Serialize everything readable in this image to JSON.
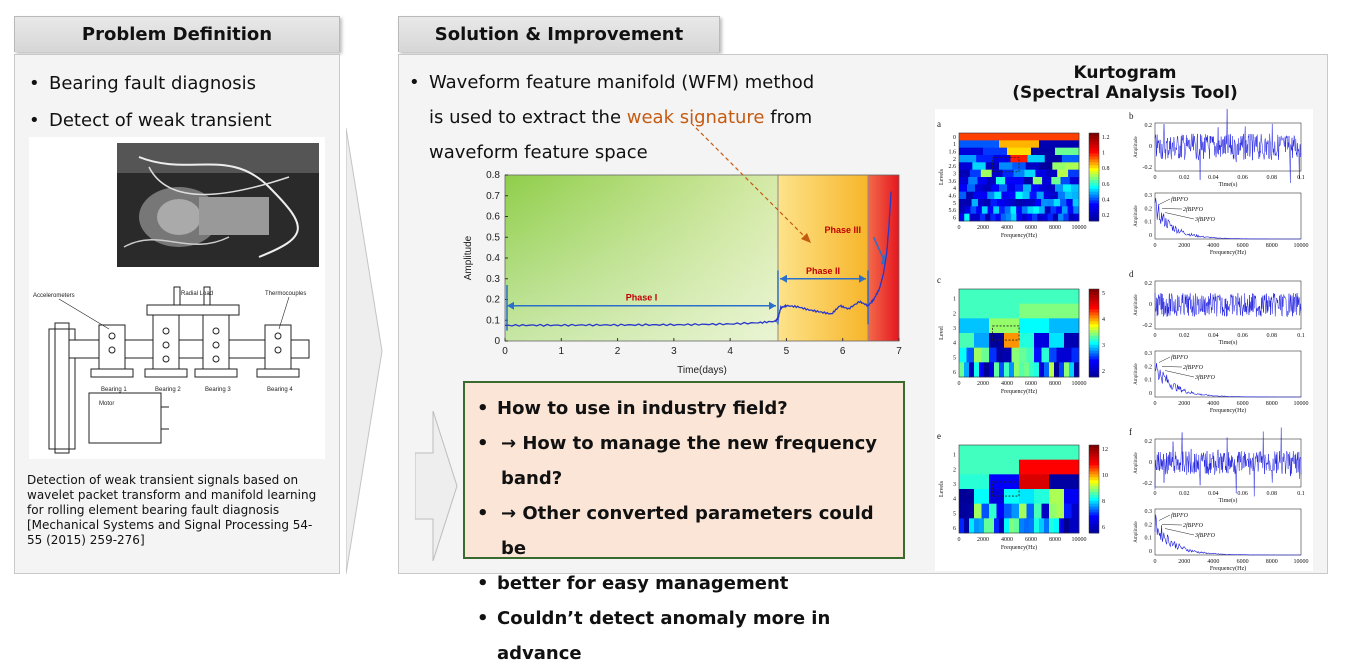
{
  "left": {
    "tab_title": "Problem Definition",
    "bullets": [
      "Bearing fault diagnosis",
      "Detect of weak transient signals"
    ],
    "diagram_labels": {
      "accelerometers": "Accelerometers",
      "radial_load": "Radial Load",
      "thermocouples": "Thermocouples",
      "bearing1": "Bearing 1",
      "bearing2": "Bearing 2",
      "bearing3": "Bearing 3",
      "bearing4": "Bearing 4",
      "motor": "Motor"
    },
    "caption": "Detection of weak transient signals based on wavelet packet transform and manifold learning for rolling element bearing fault diagnosis [Mechanical Systems and Signal Processing 54-55 (2015) 259-276]"
  },
  "middle": {
    "tab_title": "Solution & Improvement",
    "bullet_line1": "Waveform feature manifold (WFM) method",
    "bullet_line2_pre": "is used to extract the ",
    "bullet_line2_hl": "weak signature",
    "bullet_line2_post": " from",
    "bullet_line3": "waveform feature space",
    "questions": {
      "q1": "How to use in industry field?",
      "q2": "→ How to manage the new frequency band?",
      "q3a": "→ Other converted parameters could be",
      "q3b": "better for easy management",
      "q4": "Couldn’t detect anomaly more in advance"
    }
  },
  "chart_data": {
    "type": "line",
    "xlabel": "Time(days)",
    "ylabel": "Amplitude",
    "xlim": [
      0,
      7
    ],
    "ylim": [
      0,
      0.8
    ],
    "x_ticks": [
      "0",
      "1",
      "2",
      "3",
      "4",
      "5",
      "6",
      "7"
    ],
    "y_ticks": [
      "0",
      "0.1",
      "0.2",
      "0.3",
      "0.4",
      "0.5",
      "0.6",
      "0.7",
      "0.8"
    ],
    "phases": [
      {
        "name": "Phase I",
        "start": 0,
        "end": 4.85
      },
      {
        "name": "Phase II",
        "start": 4.85,
        "end": 6.45
      },
      {
        "name": "Phase III",
        "start": 6.45,
        "end": 7
      }
    ],
    "series_x": [
      0,
      0.5,
      1,
      1.5,
      2,
      2.5,
      3,
      3.5,
      4,
      4.5,
      4.8,
      4.85,
      4.9,
      5.0,
      5.2,
      5.4,
      5.6,
      5.8,
      5.95,
      6.1,
      6.3,
      6.45,
      6.55,
      6.65,
      6.72,
      6.78,
      6.82,
      6.86
    ],
    "series_y": [
      0.075,
      0.076,
      0.076,
      0.077,
      0.077,
      0.078,
      0.078,
      0.08,
      0.082,
      0.088,
      0.095,
      0.11,
      0.16,
      0.17,
      0.165,
      0.15,
      0.14,
      0.13,
      0.17,
      0.155,
      0.19,
      0.17,
      0.2,
      0.25,
      0.32,
      0.42,
      0.55,
      0.72
    ]
  },
  "right": {
    "title_line1": "Kurtogram",
    "title_line2": "(Spectral Analysis Tool)",
    "panel_letters": [
      "a",
      "b",
      "c",
      "d",
      "e",
      "f"
    ],
    "freq_label": "Frequency(Hz)",
    "time_label": "Time(s)",
    "levels_label": "Levels",
    "level_label": "Level",
    "amp_label": "Amplitude",
    "freq_ticks": [
      "0",
      "2000",
      "4000",
      "6000",
      "8000",
      "10000"
    ],
    "time_ticks": [
      "0",
      "0.02",
      "0.04",
      "0.06",
      "0.08",
      "0.1"
    ],
    "levels_a": [
      "0",
      "1",
      "1.6",
      "2",
      "2.6",
      "3",
      "3.6",
      "4",
      "4.6",
      "5",
      "5.6",
      "6"
    ],
    "levels_c": [
      "1",
      "2",
      "3",
      "4",
      "5",
      "6"
    ],
    "levels_e": [
      "1",
      "2",
      "3",
      "4",
      "5",
      "6"
    ],
    "cbar_a": [
      "1.2",
      "1",
      "0.8",
      "0.6",
      "0.4",
      "0.2"
    ],
    "cbar_c": [
      "5",
      "4",
      "3",
      "2"
    ],
    "cbar_e": [
      "12",
      "10",
      "8",
      "6"
    ],
    "amp_ticks_top": [
      "0.2",
      "0",
      "-0.2"
    ],
    "amp_ticks_bot": [
      "0.3",
      "0.2",
      "0.1",
      "0"
    ],
    "fault_labels": [
      "fBPFO",
      "2fBPFO",
      "3fBPFO"
    ]
  }
}
